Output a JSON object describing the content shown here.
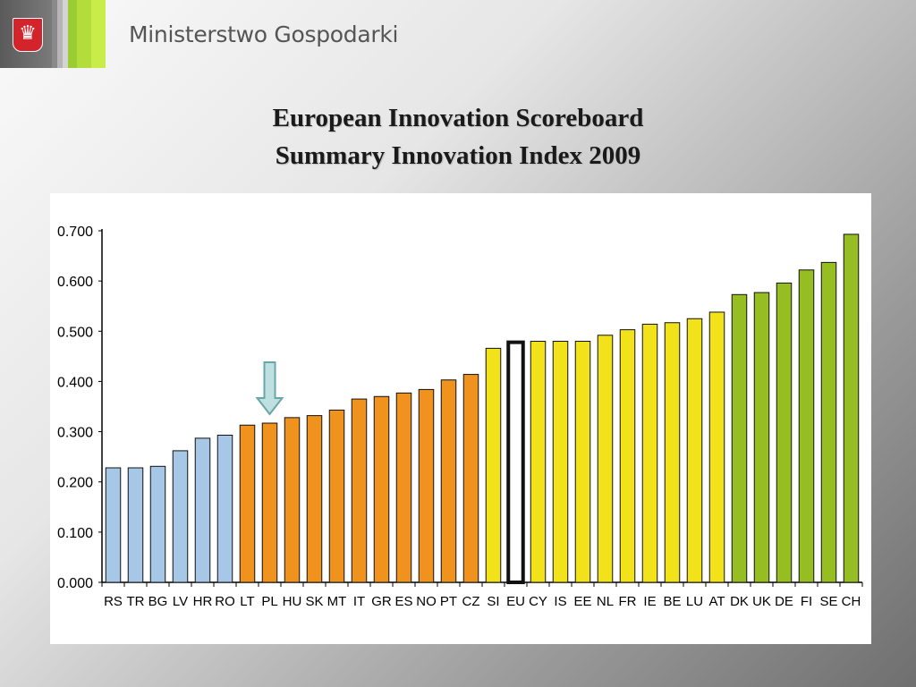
{
  "header": {
    "ministry_name": "Ministerstwo Gospodarki",
    "emblem_icon": "polish-eagle-icon"
  },
  "slide": {
    "title_line1": "European Innovation Scoreboard",
    "title_line2": "Summary Innovation Index 2009"
  },
  "chart_data": {
    "type": "bar",
    "title": "",
    "xlabel": "",
    "ylabel": "",
    "ylim": [
      0,
      0.7
    ],
    "y_ticks": [
      "0.000",
      "0.100",
      "0.200",
      "0.300",
      "0.400",
      "0.500",
      "0.600",
      "0.700"
    ],
    "categories": [
      "RS",
      "TR",
      "BG",
      "LV",
      "HR",
      "RO",
      "LT",
      "PL",
      "HU",
      "SK",
      "MT",
      "IT",
      "GR",
      "ES",
      "NO",
      "PT",
      "CZ",
      "SI",
      "EU",
      "CY",
      "IS",
      "EE",
      "NL",
      "FR",
      "IE",
      "BE",
      "LU",
      "AT",
      "DK",
      "UK",
      "DE",
      "FI",
      "SE",
      "CH"
    ],
    "values": [
      0.228,
      0.228,
      0.231,
      0.262,
      0.287,
      0.293,
      0.313,
      0.317,
      0.328,
      0.332,
      0.343,
      0.365,
      0.37,
      0.377,
      0.384,
      0.403,
      0.414,
      0.466,
      0.478,
      0.48,
      0.48,
      0.48,
      0.492,
      0.503,
      0.514,
      0.517,
      0.525,
      0.538,
      0.573,
      0.577,
      0.596,
      0.622,
      0.637,
      0.693
    ],
    "groups": [
      "blue",
      "blue",
      "blue",
      "blue",
      "blue",
      "blue",
      "orange",
      "orange",
      "orange",
      "orange",
      "orange",
      "orange",
      "orange",
      "orange",
      "orange",
      "orange",
      "orange",
      "yellow",
      "eu",
      "yellow",
      "yellow",
      "yellow",
      "yellow",
      "yellow",
      "yellow",
      "yellow",
      "yellow",
      "yellow",
      "green",
      "green",
      "green",
      "green",
      "green",
      "green"
    ],
    "colors": {
      "blue": "#a6c8e6",
      "orange": "#f0921e",
      "yellow": "#f2e219",
      "green": "#96bd21",
      "eu": "#ffffff"
    },
    "highlight_category": "PL",
    "highlight_icon": "down-arrow-icon",
    "grid": false
  }
}
